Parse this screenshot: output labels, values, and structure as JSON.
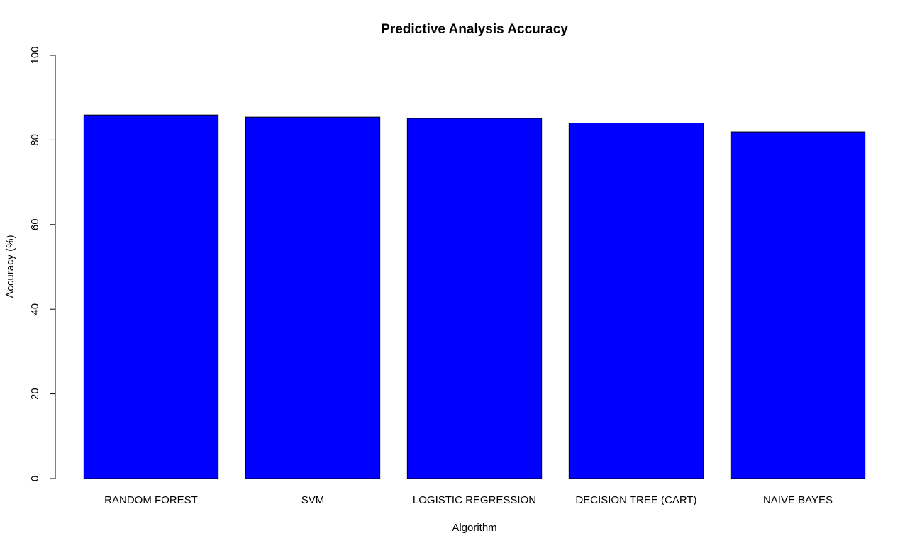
{
  "chart_data": {
    "type": "bar",
    "title": "Predictive Analysis Accuracy",
    "xlabel": "Algorithm",
    "ylabel": "Accuracy (%)",
    "categories": [
      "RANDOM FOREST",
      "SVM",
      "LOGISTIC REGRESSION",
      "DECISION TREE (CART)",
      "NAIVE BAYES"
    ],
    "values": [
      85.9,
      85.4,
      85.1,
      84.0,
      81.9
    ],
    "ylim": [
      0,
      100
    ],
    "yticks": [
      0,
      20,
      40,
      60,
      80,
      100
    ],
    "bar_color": "#0000ff",
    "grid": false,
    "legend": "none"
  }
}
